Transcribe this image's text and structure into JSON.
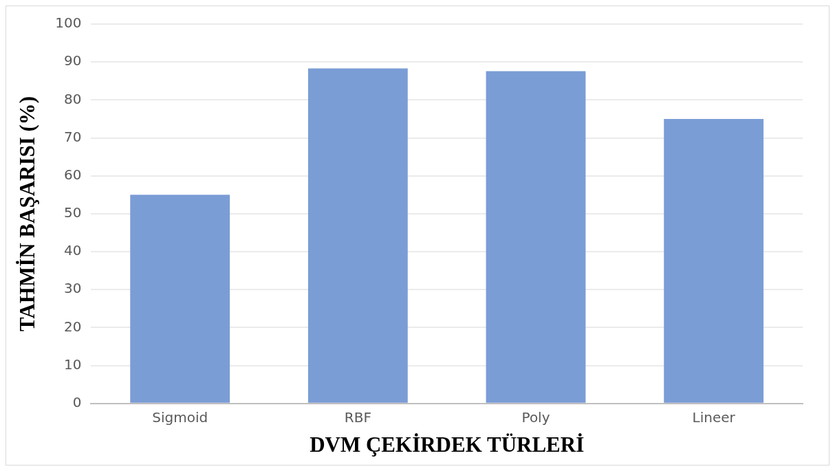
{
  "chart_data": {
    "type": "bar",
    "xlabel": "DVM ÇEKİRDEK TÜRLERİ",
    "ylabel": "TAHMİN BAŞARISI (%)",
    "categories": [
      "Sigmoid",
      "RBF",
      "Poly",
      "Lineer"
    ],
    "values": [
      55,
      88.3,
      87.6,
      75
    ],
    "color": "#7b9dd6",
    "ylim": [
      0,
      100
    ],
    "yticks": [
      0,
      10,
      20,
      30,
      40,
      50,
      60,
      70,
      80,
      90,
      100
    ],
    "grid": "y",
    "legend": false
  }
}
